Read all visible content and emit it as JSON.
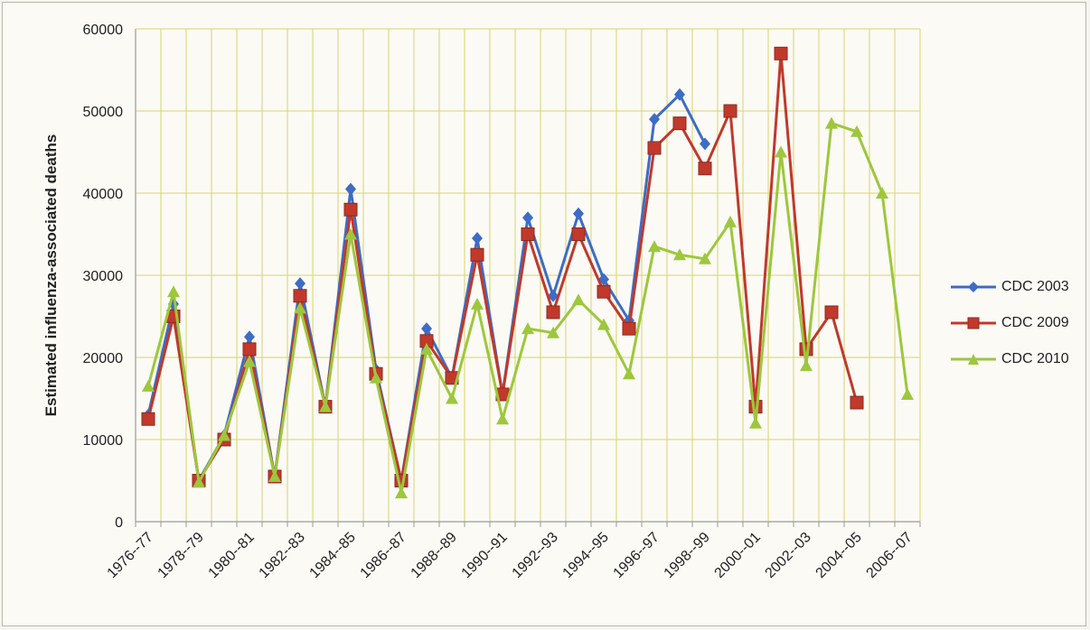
{
  "chart_data": {
    "type": "line",
    "title": "",
    "xlabel": "",
    "ylabel": "Estimated influenza-associated deaths",
    "ylim": [
      0,
      60000
    ],
    "yticks": [
      "0",
      "10000",
      "20000",
      "30000",
      "40000",
      "50000",
      "60000"
    ],
    "categories": [
      "1976-77",
      "1977-78",
      "1978-79",
      "1979-80",
      "1980-81",
      "1981-82",
      "1982-83",
      "1983-84",
      "1984-85",
      "1985-86",
      "1986-87",
      "1987-88",
      "1988-89",
      "1989-90",
      "1990-91",
      "1991-92",
      "1992-93",
      "1993-94",
      "1994-95",
      "1995-96",
      "1996-97",
      "1997-98",
      "1998-99",
      "1999-00",
      "2000-01",
      "2001-02",
      "2002-03",
      "2003-04",
      "2004-05",
      "2005-06",
      "2006-07"
    ],
    "xtick_labels": [
      "1976--77",
      "1978--79",
      "1980--81",
      "1982--83",
      "1984--85",
      "1986--87",
      "1988--89",
      "1990--91",
      "1992--93",
      "1994--95",
      "1996--97",
      "1998--99",
      "2000--01",
      "2002--03",
      "2004--05",
      "2006--07"
    ],
    "grid": true,
    "legend_position": "right",
    "series": [
      {
        "name": "CDC 2003",
        "color": "#3d6cc6",
        "marker": "diamond",
        "values": [
          13000,
          26500,
          5000,
          10500,
          22500,
          5500,
          29000,
          14000,
          40500,
          18500,
          5000,
          23500,
          17500,
          34500,
          15500,
          37000,
          27500,
          37500,
          29500,
          24500,
          49000,
          52000,
          46000,
          null,
          null,
          null,
          null,
          null,
          null,
          null,
          null
        ]
      },
      {
        "name": "CDC 2009",
        "color": "#c0392b",
        "marker": "square",
        "values": [
          12500,
          25000,
          5000,
          10000,
          21000,
          5500,
          27500,
          14000,
          38000,
          18000,
          5000,
          22000,
          17500,
          32500,
          15500,
          35000,
          25500,
          35000,
          28000,
          23500,
          45500,
          48500,
          43000,
          50000,
          14000,
          57000,
          21000,
          25500,
          14500,
          null,
          null
        ]
      },
      {
        "name": "CDC 2010",
        "color": "#9dc73d",
        "marker": "triangle",
        "values": [
          16500,
          28000,
          4800,
          10500,
          19500,
          5500,
          26000,
          14000,
          35000,
          17500,
          3500,
          21000,
          15000,
          26500,
          12500,
          23500,
          23000,
          27000,
          24000,
          18000,
          33500,
          32500,
          32000,
          36500,
          12000,
          45000,
          19000,
          48500,
          47500,
          40000,
          15500
        ]
      }
    ]
  }
}
